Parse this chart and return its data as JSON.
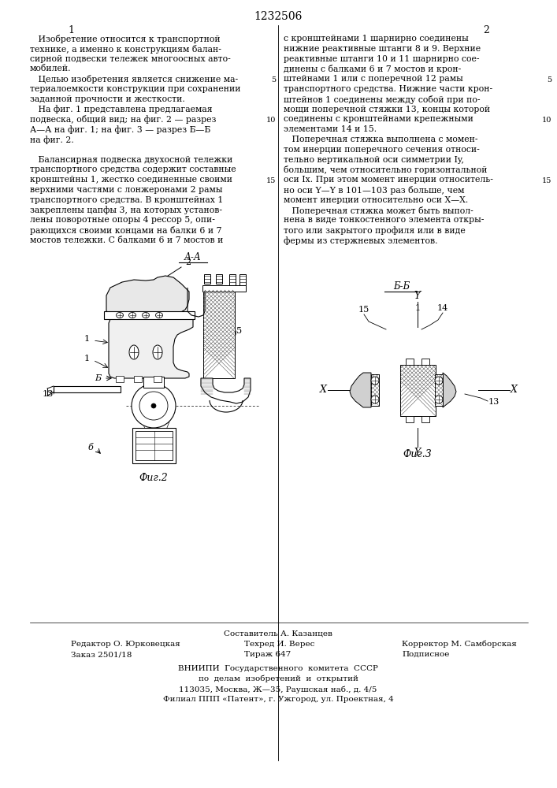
{
  "patent_number": "1232506",
  "page_numbers": [
    "1",
    "2"
  ],
  "col1_text": [
    "   Изобретение относится к транспортной",
    "технике, а именно к конструкциям балан-",
    "сирной подвески тележек многоосных авто-",
    "мобилей.",
    "   Целью изобретения является снижение ма-",
    "териалоемкости конструкции при сохранении",
    "заданной прочности и жесткости.",
    "   На фиг. 1 представлена предлагаемая",
    "подвеска, общий вид; на фиг. 2 — разрез",
    "А—А на фиг. 1; на фиг. 3 — разрез Б—Б",
    "на фиг. 2.",
    "",
    "   Балансирная подвеска двухосной тележки",
    "транспортного средства содержит составные",
    "кронштейны 1, жестко соединенные своими",
    "верхними частями с лонжеронами 2 рамы",
    "транспортного средства. В кронштейнах 1",
    "закреплены цапфы 3, на которых установ-",
    "лены поворотные опоры 4 рессор 5, опи-",
    "рающихся своими концами на балки 6 и 7",
    "мостов тележки. С балками 6 и 7 мостов и"
  ],
  "col2_text": [
    "с кронштейнами 1 шарнирно соединены",
    "нижние реактивные штанги 8 и 9. Верхние",
    "реактивные штанги 10 и 11 шарнирно сое-",
    "динены с балками 6 и 7 мостов и крон-",
    "штейнами 1 или с поперечной 12 рамы",
    "транспортного средства. Нижние части крон-",
    "штейнов 1 соединены между собой при по-",
    "мощи поперечной стяжки 13, концы которой",
    "соединены с кронштейнами крепежными",
    "элементами 14 и 15.",
    "   Поперечная стяжка выполнена с момен-",
    "том инерции поперечного сечения относи-",
    "тельно вертикальной оси симметрии Iy,",
    "большим, чем относительно горизонтальной",
    "оси Ix. При этом момент инерции относитель-",
    "но оси Y—Y в 101—103 раз больше, чем",
    "момент инерции относительно оси Х—Х.",
    "   Поперечная стяжка может быть выпол-",
    "нена в виде тонкостенного элемента откры-",
    "того или закрытого профиля или в виде",
    "фермы из стержневых элементов."
  ],
  "fig2_label": "Фиг.2",
  "fig3_label": "Фиг.3",
  "fig_aa_label": "А-А",
  "fig_bb_label": "Б-Б",
  "bottom_composer": "Составитель А. Казанцев",
  "bottom_editor": "Редактор О. Юрковецкая",
  "bottom_techred": "Техред И. Верес",
  "bottom_corrector": "Корректор М. Самборская",
  "bottom_order": "Заказ 2501/18",
  "bottom_tirazh": "Тираж 647",
  "bottom_podpisnoe": "Подписное",
  "bottom_vniip1": "ВНИИПИ  Государственного  комитета  СССР",
  "bottom_vniip2": "по  делам  изобретений  и  открытий",
  "bottom_vniip3": "113035, Москва, Ж—35, Раушская наб., д. 4/5",
  "bottom_vniip4": "Филиал ППП «Патент», г. Ужгород, ул. Проектная, 4",
  "bg_color": "#ffffff",
  "text_color": "#000000"
}
